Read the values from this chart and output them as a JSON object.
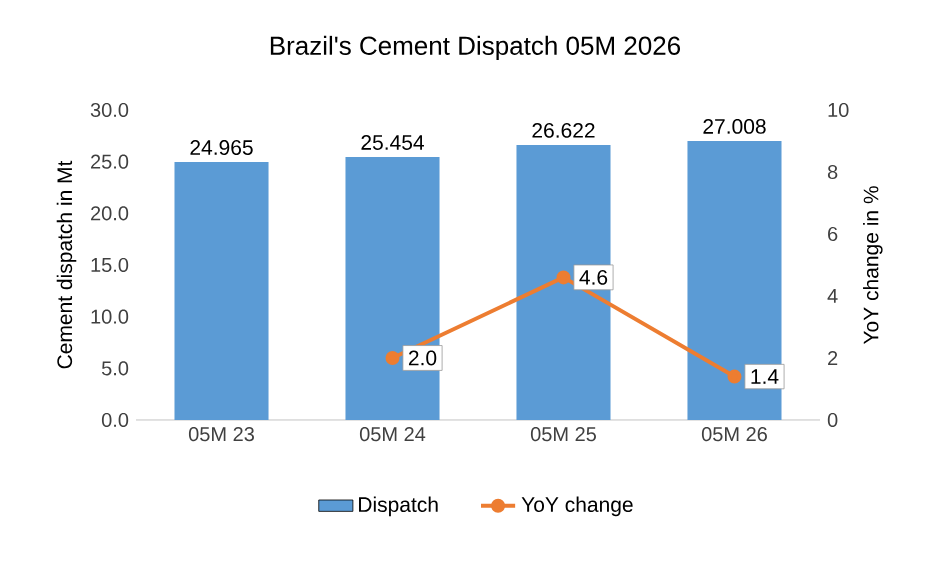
{
  "chart_data": {
    "type": "bar",
    "title": "Brazil's Cement  Dispatch 05M 2026",
    "ylabel": "Cement dispatch in Mt",
    "y2label": "YoY change in %",
    "categories": [
      "05M 23",
      "05M 24",
      "05M 25",
      "05M 26"
    ],
    "series": [
      {
        "name": "Dispatch",
        "color": "#5b9bd5",
        "values": [
          24.965,
          25.454,
          26.622,
          27.008
        ],
        "value_labels": [
          "24.965",
          "25.454",
          "26.622",
          "27.008"
        ]
      },
      {
        "name": "YoY change",
        "type": "line",
        "axis": "y2",
        "color": "#ed7d31",
        "marker": "circle",
        "values": [
          null,
          2.0,
          4.6,
          1.4
        ],
        "value_labels": [
          null,
          "2.0",
          "4.6",
          "1.4"
        ]
      }
    ],
    "ylim": [
      0,
      30
    ],
    "yticks": [
      {
        "value": 0,
        "label": "0.0"
      },
      {
        "value": 5,
        "label": "5.0"
      },
      {
        "value": 10,
        "label": "10.0"
      },
      {
        "value": 15,
        "label": "15.0"
      },
      {
        "value": 20,
        "label": "20.0"
      },
      {
        "value": 25,
        "label": "25.0"
      },
      {
        "value": 30,
        "label": "30.0"
      }
    ],
    "y2lim": [
      0,
      10
    ],
    "y2ticks": [
      0,
      2,
      4,
      6,
      8,
      10
    ],
    "legend": "bottom"
  }
}
